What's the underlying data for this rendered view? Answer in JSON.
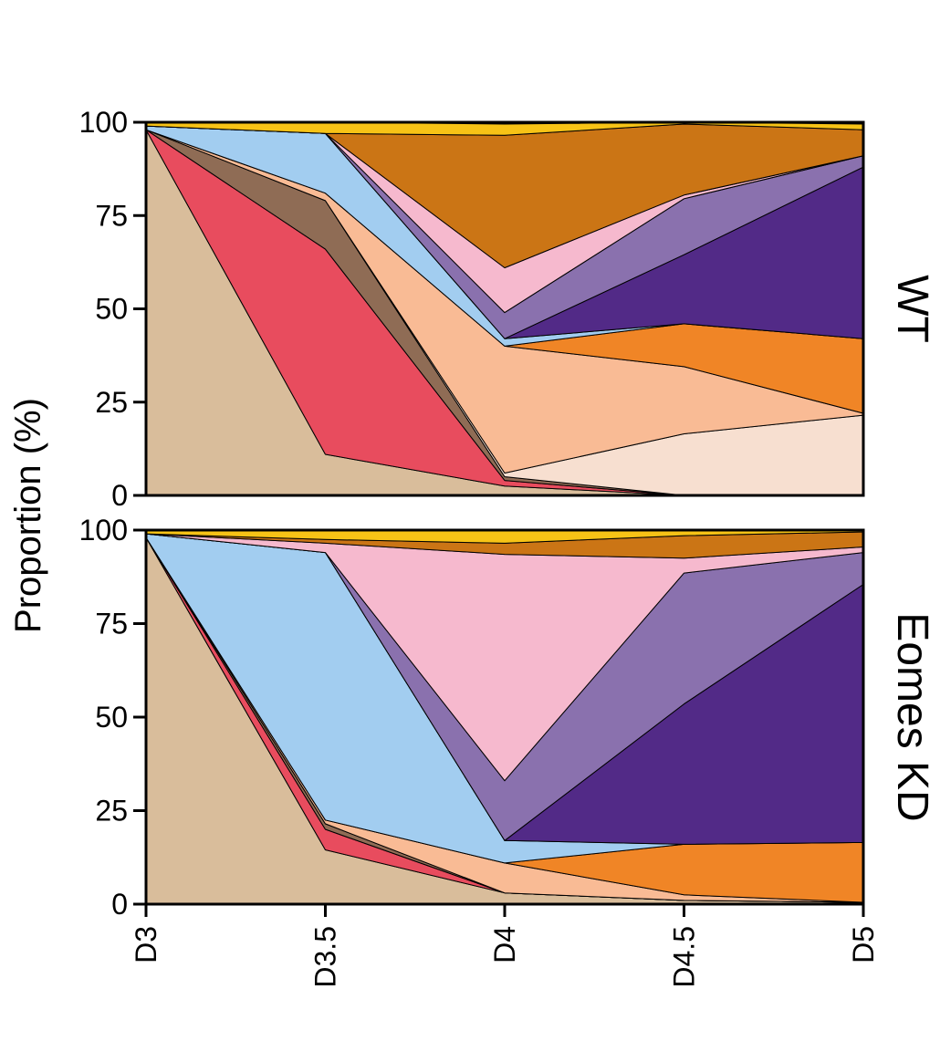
{
  "chart_data": {
    "type": "area",
    "stacked": true,
    "ylabel": "Proportion (%)",
    "xlabel": "",
    "categories": [
      "D3",
      "D3.5",
      "D4",
      "D4.5",
      "D5"
    ],
    "ylim": [
      0,
      100
    ],
    "yticks": [
      0,
      25,
      50,
      75,
      100
    ],
    "grid": false,
    "legend": "none",
    "layer_colors": [
      "#d9bd9b",
      "#e84c5e",
      "#8f6c55",
      "#f7dfd0",
      "#f9bb95",
      "#f08526",
      "#a2cdf0",
      "#522a87",
      "#8a71ae",
      "#f6b9ce",
      "#cb7515",
      "#f7c316"
    ],
    "panels": [
      {
        "label": "WT",
        "series": [
          {
            "values": [
              98,
              11,
              2.5,
              0,
              0
            ]
          },
          {
            "values": [
              0,
              55,
              1.5,
              0,
              0
            ]
          },
          {
            "values": [
              0,
              13,
              1,
              0,
              0
            ]
          },
          {
            "values": [
              0,
              0,
              1,
              16.5,
              21.5
            ]
          },
          {
            "values": [
              0,
              2,
              34,
              18,
              0.5
            ]
          },
          {
            "values": [
              0,
              0,
              0,
              11.5,
              20
            ]
          },
          {
            "values": [
              1,
              16,
              2,
              0,
              0
            ]
          },
          {
            "values": [
              0,
              0,
              0,
              18.5,
              46
            ]
          },
          {
            "values": [
              0,
              0,
              7,
              15,
              3
            ]
          },
          {
            "values": [
              0,
              0,
              12,
              1,
              0
            ]
          },
          {
            "values": [
              0,
              0,
              35.5,
              19,
              7
            ]
          },
          {
            "values": [
              1,
              3,
              3,
              0.5,
              1.5
            ]
          }
        ]
      },
      {
        "label": "Eomes KD",
        "series": [
          {
            "values": [
              98,
              14.5,
              3,
              1,
              0.5
            ]
          },
          {
            "values": [
              0,
              5.5,
              0,
              0,
              0
            ]
          },
          {
            "values": [
              0,
              1.5,
              0,
              0,
              0
            ]
          },
          {
            "values": [
              0,
              0,
              0,
              0,
              0
            ]
          },
          {
            "values": [
              0,
              1,
              8,
              1.5,
              0
            ]
          },
          {
            "values": [
              0,
              0,
              0,
              13.5,
              16
            ]
          },
          {
            "values": [
              1,
              71.5,
              6,
              0,
              0
            ]
          },
          {
            "values": [
              0,
              0,
              0,
              37.5,
              69
            ]
          },
          {
            "values": [
              0,
              0,
              16,
              35,
              8.5
            ]
          },
          {
            "values": [
              0,
              2.5,
              60.5,
              4,
              1.5
            ]
          },
          {
            "values": [
              0,
              1,
              3,
              6,
              4
            ]
          },
          {
            "values": [
              1,
              2.5,
              3.5,
              1.5,
              0.5
            ]
          }
        ]
      }
    ]
  }
}
